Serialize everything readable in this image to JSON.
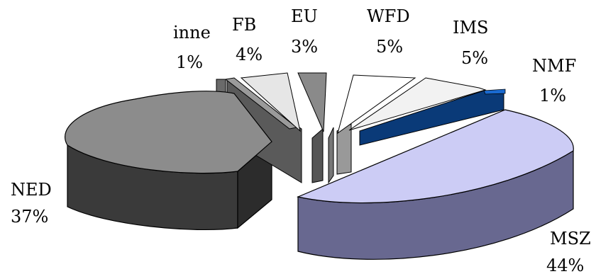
{
  "chart_data": {
    "type": "pie",
    "style": "3d-exploded",
    "title": "",
    "slices": [
      {
        "name": "MSZ",
        "value": 44,
        "label": "44%",
        "color": "#ccccf5"
      },
      {
        "name": "NMF",
        "value": 1,
        "label": "1%",
        "color": "#0a3a78"
      },
      {
        "name": "IMS",
        "value": 5,
        "label": "5%",
        "color": "#f2f2f2"
      },
      {
        "name": "WFD",
        "value": 5,
        "label": "5%",
        "color": "#ffffff"
      },
      {
        "name": "EU",
        "value": 3,
        "label": "3%",
        "color": "#8a8a8a"
      },
      {
        "name": "FB",
        "value": 4,
        "label": "4%",
        "color": "#e6e6e6"
      },
      {
        "name": "inne",
        "value": 1,
        "label": "1%",
        "color": "#9a9a9a"
      },
      {
        "name": "NED",
        "value": 37,
        "label": "37%",
        "color": "#8c8c8c"
      }
    ]
  }
}
